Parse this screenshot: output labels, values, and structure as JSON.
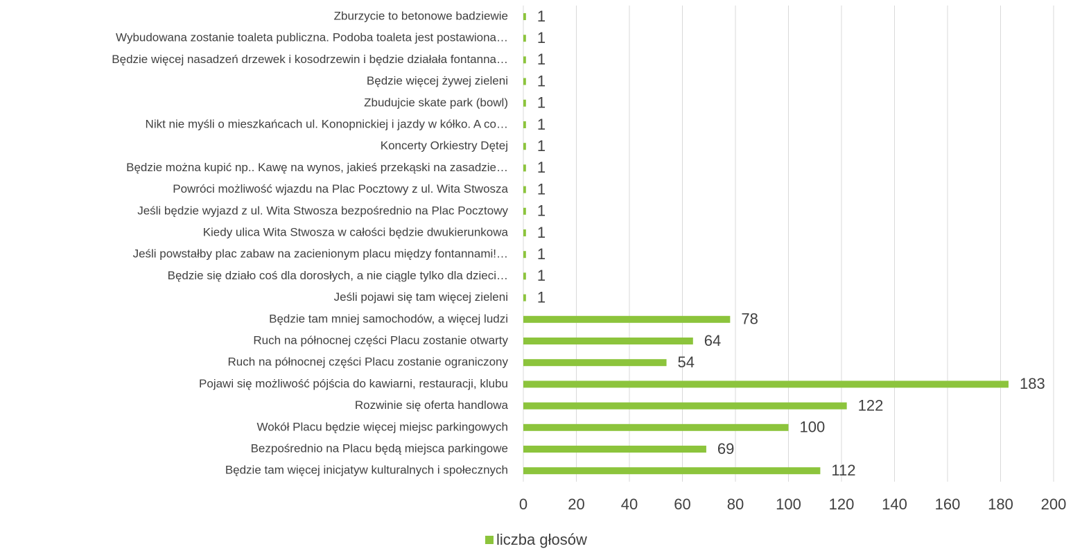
{
  "chart_data": {
    "type": "bar",
    "orientation": "horizontal",
    "categories": [
      "Zburzycie to betonowe badziewie",
      "Wybudowana zostanie toaleta publiczna. Podoba toaleta jest postawiona…",
      "Będzie więcej nasadzeń drzewek i kosodrzewin i będzie działała fontanna…",
      "Będzie więcej żywej zieleni",
      "Zbudujcie skate park (bowl)",
      "Nikt nie myśli o mieszkańcach ul. Konopnickiej i jazdy w kółko. A co…",
      "Koncerty Orkiestry Dętej",
      "Będzie można kupić np.. Kawę na wynos, jakieś przekąski na zasadzie…",
      "Powróci możliwość wjazdu na Plac Pocztowy z ul. Wita Stwosza",
      "Jeśli będzie wyjazd z ul. Wita Stwosza bezpośrednio na Plac Pocztowy",
      "Kiedy ulica Wita Stwosza w całości będzie dwukierunkowa",
      "Jeśli powstałby plac zabaw na zacienionym placu między fontannami!…",
      "Będzie się działo coś dla dorosłych, a nie ciągle tylko dla dzieci…",
      "Jeśli pojawi się tam więcej zieleni",
      "Będzie tam mniej samochodów, a więcej ludzi",
      "Ruch na północnej części Placu zostanie otwarty",
      "Ruch na północnej części Placu zostanie ograniczony",
      "Pojawi się możliwość pójścia do kawiarni, restauracji, klubu",
      "Rozwinie się oferta handlowa",
      "Wokół Placu będzie więcej miejsc parkingowych",
      "Bezpośrednio na Placu będą miejsca parkingowe",
      "Będzie tam więcej inicjatyw kulturalnych i społecznych"
    ],
    "series": [
      {
        "name": "liczba głosów",
        "color": "#8cc43c",
        "values": [
          1,
          1,
          1,
          1,
          1,
          1,
          1,
          1,
          1,
          1,
          1,
          1,
          1,
          1,
          78,
          64,
          54,
          183,
          122,
          100,
          69,
          112
        ]
      }
    ],
    "xlim": [
      0,
      200
    ],
    "xticks": [
      0,
      20,
      40,
      60,
      80,
      100,
      120,
      140,
      160,
      180,
      200
    ],
    "grid": true,
    "legend": "bottom"
  }
}
